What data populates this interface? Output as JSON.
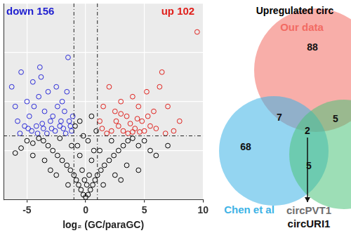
{
  "chart_data": [
    {
      "type": "scatter",
      "x_label": "log₂ (GC/paraGC)",
      "xlim": [
        -7,
        10
      ],
      "xticks": [
        -5,
        0,
        5,
        10
      ],
      "ylim": [
        0,
        4
      ],
      "yticks": [
        0,
        1,
        2,
        3,
        4
      ],
      "tick_labels": "x",
      "grid": true,
      "thresholds": {
        "x": [
          -1,
          1
        ],
        "y": 1.3
      },
      "annotations": [
        {
          "text": "down 156",
          "color": "#1f1fd0"
        },
        {
          "text": "up 102",
          "color": "#e0201c"
        }
      ],
      "series": [
        {
          "color": "#000000",
          "marker": "circle_open",
          "x": [
            0,
            0.2,
            -0.2,
            0.4,
            -0.4,
            0.6,
            -0.6,
            0.8,
            -0.8,
            1.0,
            -1.0,
            1.3,
            -1.3,
            1.6,
            -1.6,
            2.0,
            -2.0,
            2.4,
            -2.4,
            2.8,
            -2.8,
            3.2,
            -3.2,
            3.6,
            -3.6,
            4.0,
            -4.0,
            4.5,
            -4.5,
            5.0,
            -5.0,
            5.5,
            -5.5,
            6.0,
            -6.0,
            0.3,
            -0.3,
            0.5,
            -0.5,
            0.7,
            -0.7,
            0.2,
            -0.2,
            0.9,
            -0.9,
            0.5,
            -0.5,
            1.5,
            -1.5,
            2.5,
            -2.5,
            3.5,
            -3.5,
            4.5,
            -4.5,
            1.2,
            -1.2,
            2.2,
            -2.2,
            3.0,
            -3.0,
            7.0,
            0.1,
            -0.1
          ],
          "values": [
            0.05,
            0.1,
            0.1,
            0.2,
            0.2,
            0.3,
            0.3,
            0.4,
            0.4,
            0.5,
            0.5,
            0.6,
            0.6,
            0.7,
            0.7,
            0.8,
            0.8,
            0.9,
            0.9,
            1.0,
            1.0,
            1.1,
            1.1,
            1.2,
            1.2,
            1.25,
            1.25,
            1.1,
            1.15,
            1.2,
            1.2,
            1.0,
            1.05,
            0.9,
            0.95,
            0.5,
            0.6,
            0.8,
            0.9,
            1.0,
            1.1,
            1.2,
            1.3,
            1.4,
            1.5,
            1.7,
            1.6,
            0.3,
            0.3,
            0.5,
            0.5,
            0.7,
            0.8,
            0.6,
            0.9,
            1.0,
            1.1,
            1.2,
            1.25,
            0.4,
            0.6,
            1.1,
            0.3,
            0.4
          ]
        },
        {
          "color": "#2a2ad8",
          "marker": "circle_open",
          "x": [
            -5.5,
            -4.5,
            -3.8,
            -2.5,
            -1.5,
            -3.2,
            -4.0,
            -5.0,
            -2.0,
            -6.0,
            -3.5,
            -4.8,
            -2.8,
            -1.8,
            -5.8,
            -3.0,
            -4.2,
            -2.2,
            -1.4,
            -3.6,
            -4.6,
            -2.6,
            -1.2,
            -5.2,
            -3.3,
            -1.7,
            -4.4,
            -2.4,
            -1.6,
            -3.9,
            -1.3,
            -2.9,
            -4.1,
            -6.3,
            -5.6,
            -1.1,
            -2.1,
            -3.7,
            -1.9,
            -4.9
          ],
          "values": [
            2.6,
            2.4,
            2.5,
            2.3,
            2.9,
            2.2,
            2.1,
            2.0,
            2.0,
            1.9,
            1.8,
            1.7,
            1.7,
            1.8,
            1.6,
            1.6,
            1.5,
            1.5,
            1.6,
            1.45,
            1.4,
            1.4,
            1.4,
            1.5,
            1.35,
            1.35,
            1.9,
            1.9,
            2.2,
            2.7,
            1.5,
            1.45,
            1.35,
            2.3,
            1.35,
            1.7,
            1.6,
            1.55,
            1.45,
            1.45
          ]
        },
        {
          "color": "#e0201c",
          "marker": "circle_open",
          "x": [
            9.5,
            6.5,
            6.3,
            5.2,
            4.0,
            2.0,
            3.0,
            7.0,
            1.5,
            4.5,
            5.8,
            2.5,
            3.5,
            8.0,
            1.2,
            4.8,
            3.8,
            2.8,
            5.5,
            4.2,
            3.2,
            6.0,
            2.2,
            4.6,
            5.0,
            3.6,
            1.8,
            4.0,
            6.8,
            2.6,
            1.4,
            5.3,
            3.0,
            4.4,
            7.5
          ],
          "values": [
            3.42,
            2.6,
            2.3,
            2.2,
            2.1,
            2.3,
            2.0,
            1.9,
            1.9,
            1.9,
            1.8,
            1.8,
            1.7,
            1.6,
            1.6,
            1.6,
            1.55,
            1.5,
            1.5,
            1.45,
            1.4,
            1.45,
            1.4,
            1.38,
            1.4,
            1.35,
            1.35,
            1.38,
            1.35,
            1.6,
            1.45,
            1.7,
            1.75,
            1.65,
            1.4
          ]
        }
      ]
    },
    {
      "type": "venn",
      "title": "Upregulated circ",
      "sets": [
        {
          "name": "Our data",
          "color": "#f26b63"
        },
        {
          "name": "Chen et al",
          "color": "#3db3e6"
        },
        {
          "color": "#4cc27a"
        }
      ],
      "regions": [
        {
          "sets": [
            0
          ],
          "value": 88
        },
        {
          "sets": [
            0,
            1
          ],
          "value": 7
        },
        {
          "sets": [
            0,
            2
          ],
          "value": 5
        },
        {
          "sets": [
            1
          ],
          "value": 68
        },
        {
          "sets": [
            0,
            1,
            2
          ],
          "value": 2
        },
        {
          "sets": [
            1,
            2
          ],
          "value": 5
        }
      ],
      "callout": {
        "sets": [
          0,
          1,
          2
        ],
        "labels": [
          "circPVT1",
          "circURI1"
        ]
      }
    }
  ]
}
